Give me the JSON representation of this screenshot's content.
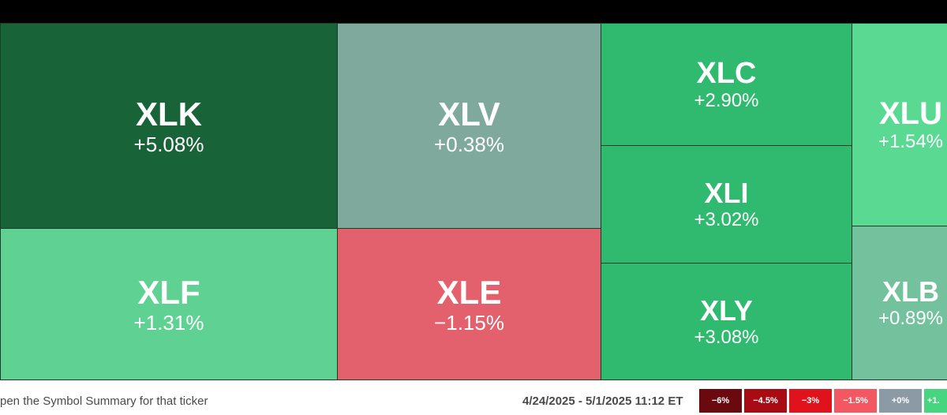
{
  "tiles": [
    {
      "id": "xlk",
      "symbol": "XLK",
      "change": "+5.08%",
      "color": "#196339"
    },
    {
      "id": "xlv",
      "symbol": "XLV",
      "change": "+0.38%",
      "color": "#80a99e"
    },
    {
      "id": "xlf",
      "symbol": "XLF",
      "change": "+1.31%",
      "color": "#5fd192"
    },
    {
      "id": "xle",
      "symbol": "XLE",
      "change": "−1.15%",
      "color": "#e3616c"
    },
    {
      "id": "xlc",
      "symbol": "XLC",
      "change": "+2.90%",
      "color": "#30ba6f"
    },
    {
      "id": "xli",
      "symbol": "XLI",
      "change": "+3.02%",
      "color": "#30ba6f"
    },
    {
      "id": "xly",
      "symbol": "XLY",
      "change": "+3.08%",
      "color": "#30ba6f"
    },
    {
      "id": "xlu",
      "symbol": "XLU",
      "change": "+1.54%",
      "color": "#5ad992"
    },
    {
      "id": "xlb",
      "symbol": "XLB",
      "change": "+0.89%",
      "color": "#73c19d"
    }
  ],
  "footer": {
    "hint": "pen the Symbol Summary for that ticker",
    "date_range": "4/24/2025 - 5/1/2025 11:12 ET"
  },
  "legend": [
    {
      "label": "−6%",
      "color": "#6b0a0e"
    },
    {
      "label": "−4.5%",
      "color": "#a80b14"
    },
    {
      "label": "−3%",
      "color": "#e0121b"
    },
    {
      "label": "−1.5%",
      "color": "#f35862"
    },
    {
      "label": "+0%",
      "color": "#8c9aa5"
    },
    {
      "label": "+1.",
      "color": "#48d57f"
    }
  ]
}
